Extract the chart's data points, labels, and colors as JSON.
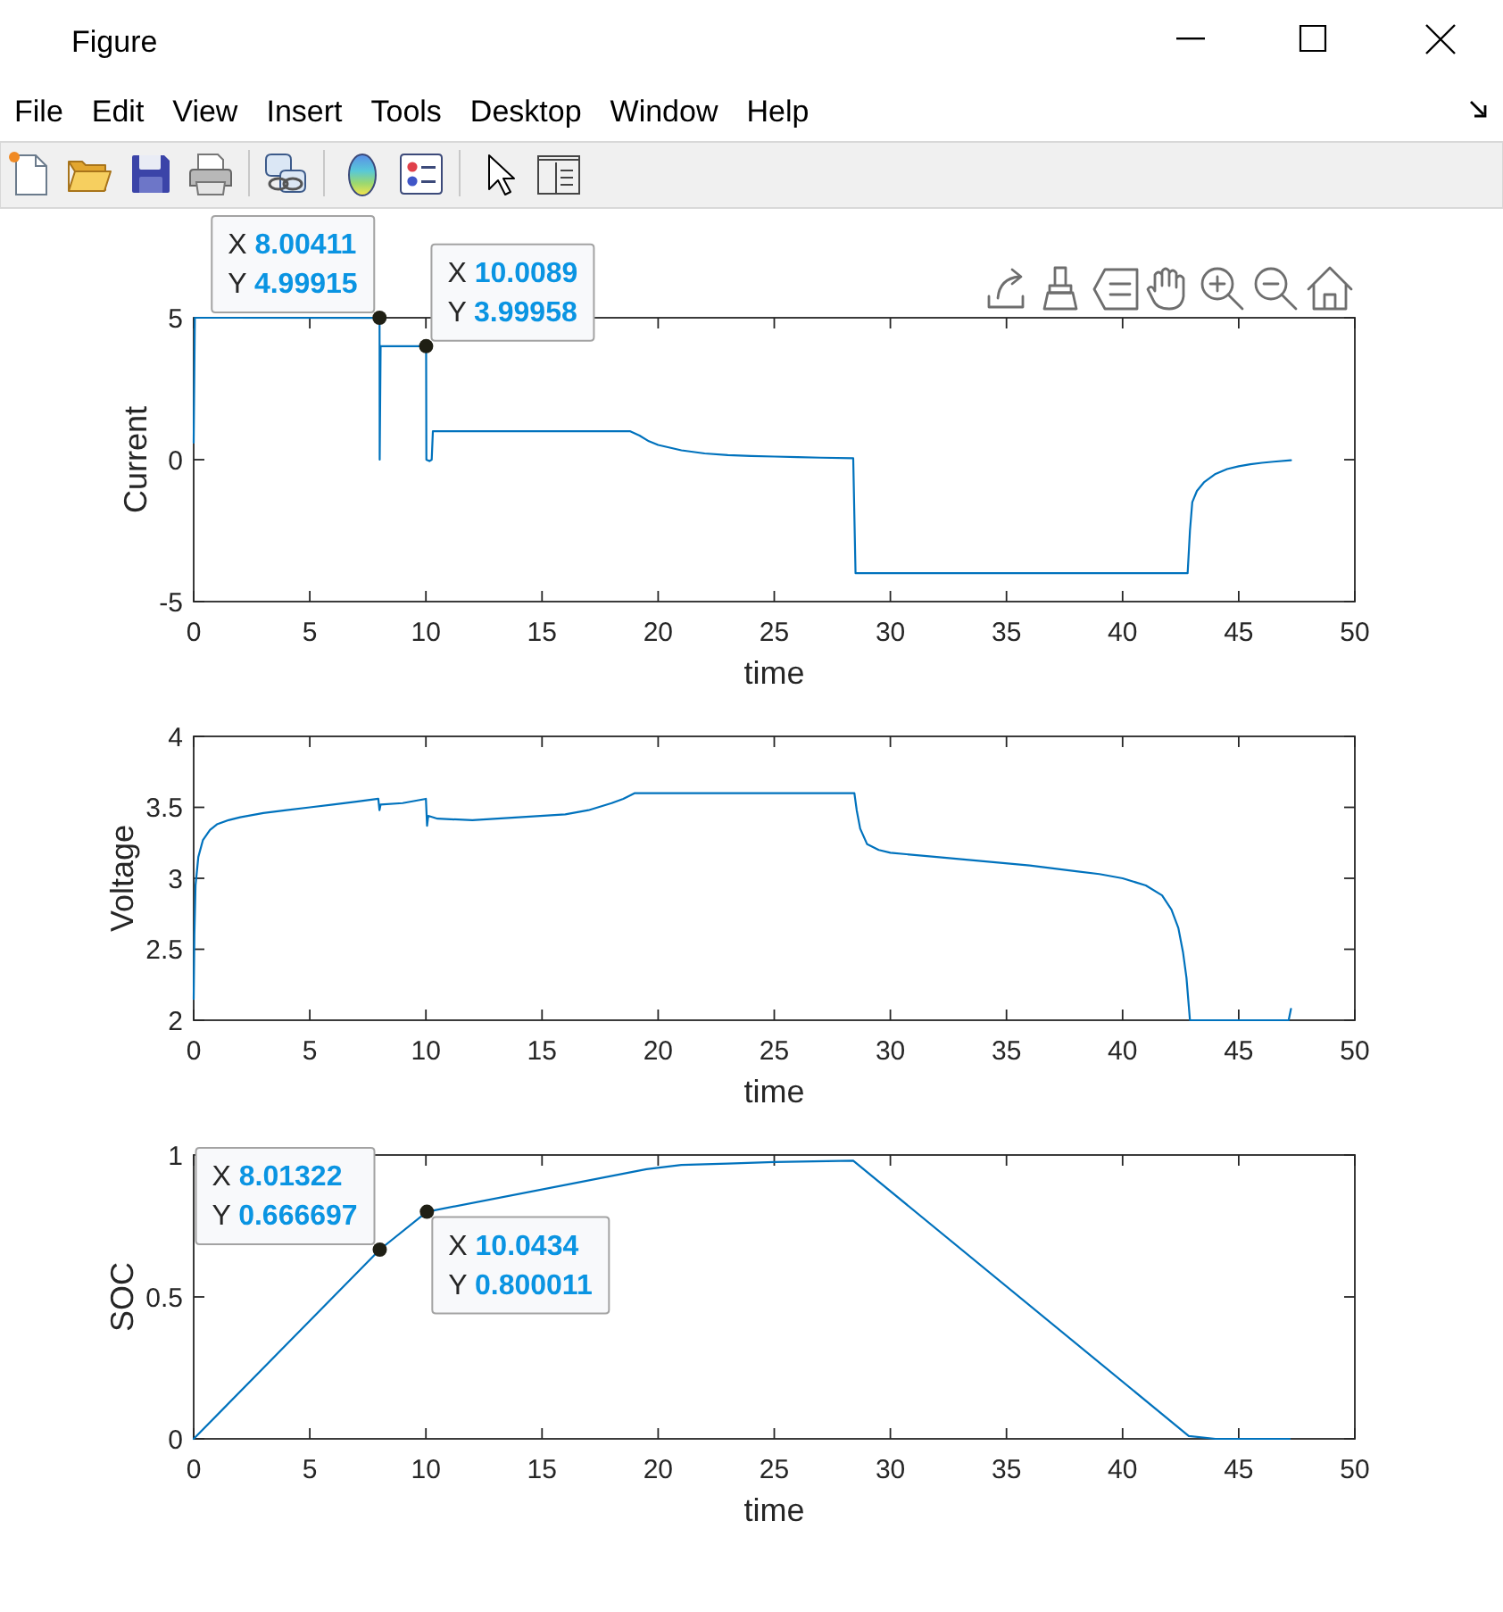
{
  "chart_data": [
    {
      "type": "other",
      "title": "Figure",
      "annotations": [
        "File",
        "Edit",
        "View",
        "Insert",
        "Tools",
        "Desktop",
        "Window",
        "Help"
      ]
    },
    {
      "type": "line",
      "xlabel": "time",
      "ylabel": "Current",
      "color": "#0072bd",
      "x": [
        0,
        0.05,
        8.00411,
        8.01,
        8.05,
        10.0089,
        10.02,
        10.15,
        10.25,
        10.3,
        18.8,
        19.2,
        19.6,
        20,
        21,
        22,
        23,
        24,
        25,
        26,
        27,
        28.4,
        28.5,
        42.8,
        42.9,
        43,
        43.2,
        43.5,
        44,
        44.5,
        45,
        45.5,
        46,
        46.5,
        47.25
      ],
      "values": [
        0.6,
        5,
        4.99915,
        0,
        4,
        3.99958,
        0,
        -0.05,
        0,
        1,
        1,
        0.85,
        0.65,
        0.52,
        0.33,
        0.22,
        0.16,
        0.13,
        0.11,
        0.09,
        0.07,
        0.05,
        -4,
        -4,
        -2.5,
        -1.5,
        -1.1,
        -0.8,
        -0.5,
        -0.33,
        -0.23,
        -0.16,
        -0.11,
        -0.07,
        -0.02
      ],
      "xlim": [
        0,
        50
      ],
      "xticks": [
        0,
        5,
        10,
        15,
        20,
        25,
        30,
        35,
        40,
        45,
        50
      ],
      "ylim": [
        -5,
        5
      ],
      "yticks": [
        -5,
        0,
        5
      ],
      "annotations": [
        {
          "text": "X 8.00411\nY 4.99915",
          "x": 8.00411,
          "y": 4.99915
        },
        {
          "text": "X 10.0089\nY 3.99958",
          "x": 10.0089,
          "y": 3.99958
        }
      ]
    },
    {
      "type": "line",
      "xlabel": "time",
      "ylabel": "Voltage",
      "color": "#0072bd",
      "x": [
        0,
        0.03,
        0.08,
        0.2,
        0.4,
        0.7,
        1,
        1.5,
        2,
        3,
        4,
        5,
        6,
        7,
        7.95,
        8.0,
        8.05,
        9,
        10,
        10.05,
        10.1,
        10.5,
        12,
        14,
        16,
        17,
        18,
        18.5,
        19,
        28.45,
        28.55,
        28.7,
        29,
        29.5,
        30,
        32,
        34,
        36,
        38,
        39,
        40,
        41,
        41.7,
        42.1,
        42.4,
        42.6,
        42.75,
        42.85,
        42.9,
        47.15,
        47.25
      ],
      "values": [
        2.15,
        2.6,
        2.95,
        3.15,
        3.27,
        3.34,
        3.38,
        3.41,
        3.43,
        3.46,
        3.48,
        3.5,
        3.52,
        3.54,
        3.56,
        3.48,
        3.52,
        3.53,
        3.56,
        3.37,
        3.44,
        3.42,
        3.41,
        3.43,
        3.45,
        3.48,
        3.53,
        3.56,
        3.6,
        3.6,
        3.48,
        3.35,
        3.24,
        3.2,
        3.18,
        3.15,
        3.12,
        3.09,
        3.05,
        3.03,
        3.0,
        2.95,
        2.88,
        2.78,
        2.65,
        2.48,
        2.3,
        2.1,
        2.0,
        2.0,
        2.08
      ],
      "xlim": [
        0,
        50
      ],
      "xticks": [
        0,
        5,
        10,
        15,
        20,
        25,
        30,
        35,
        40,
        45,
        50
      ],
      "ylim": [
        2,
        4
      ],
      "yticks": [
        2,
        2.5,
        3,
        3.5,
        4
      ]
    },
    {
      "type": "line",
      "xlabel": "time",
      "ylabel": "SOC",
      "color": "#0072bd",
      "x": [
        0,
        8.01322,
        10.0434,
        19.5,
        21,
        23,
        25,
        28.4,
        42.85,
        44,
        47.2
      ],
      "values": [
        0,
        0.666697,
        0.800011,
        0.95,
        0.965,
        0.97,
        0.975,
        0.98,
        0.01,
        0,
        0
      ],
      "xlim": [
        0,
        50
      ],
      "xticks": [
        0,
        5,
        10,
        15,
        20,
        25,
        30,
        35,
        40,
        45,
        50
      ],
      "ylim": [
        0,
        1
      ],
      "yticks": [
        0,
        0.5,
        1
      ],
      "annotations": [
        {
          "text": "X 8.01322\nY 0.666697",
          "x": 8.01322,
          "y": 0.666697
        },
        {
          "text": "X 10.0434\nY 0.800011",
          "x": 10.0434,
          "y": 0.800011
        }
      ]
    }
  ]
}
